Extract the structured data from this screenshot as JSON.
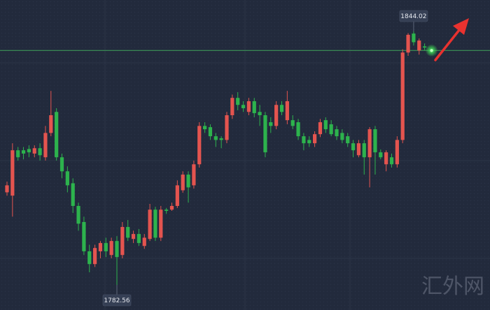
{
  "chart_data": {
    "type": "candlestick",
    "up_color": "#e4544f",
    "down_color": "#2db34d",
    "price_line_color": "#3fa35a",
    "price_line": 1839.4,
    "watermark": "汇外网",
    "annotations": [
      {
        "label": "1844.02",
        "value": 1844.02,
        "index": 74
      },
      {
        "label": "1782.56",
        "value": 1782.56,
        "index": 20
      }
    ],
    "ohlc": [
      [
        1805.0,
        1807.6,
        1804.2,
        1806.7
      ],
      [
        1804.2,
        1816.9,
        1799.1,
        1815.2
      ],
      [
        1815.2,
        1816.0,
        1812.7,
        1813.5
      ],
      [
        1815.2,
        1816.0,
        1813.0,
        1814.4
      ],
      [
        1815.5,
        1816.4,
        1813.5,
        1814.7
      ],
      [
        1814.4,
        1816.4,
        1813.5,
        1815.7
      ],
      [
        1815.7,
        1816.9,
        1812.7,
        1814.0
      ],
      [
        1813.5,
        1821.1,
        1812.7,
        1819.4
      ],
      [
        1819.4,
        1829.6,
        1818.6,
        1823.7
      ],
      [
        1824.5,
        1825.4,
        1812.7,
        1813.5
      ],
      [
        1813.5,
        1814.4,
        1808.4,
        1810.1
      ],
      [
        1810.1,
        1811.3,
        1805.0,
        1806.7
      ],
      [
        1807.2,
        1808.4,
        1800.0,
        1801.7
      ],
      [
        1801.7,
        1802.5,
        1795.7,
        1797.4
      ],
      [
        1797.8,
        1799.1,
        1789.8,
        1790.7
      ],
      [
        1790.7,
        1792.3,
        1785.6,
        1787.6
      ],
      [
        1787.6,
        1792.3,
        1786.9,
        1791.5
      ],
      [
        1790.7,
        1793.2,
        1789.0,
        1792.7
      ],
      [
        1792.7,
        1794.0,
        1789.3,
        1790.7
      ],
      [
        1789.8,
        1794.0,
        1789.0,
        1793.2
      ],
      [
        1793.2,
        1794.4,
        1782.56,
        1789.3
      ],
      [
        1789.8,
        1797.8,
        1789.0,
        1796.6
      ],
      [
        1796.6,
        1798.3,
        1793.2,
        1794.0
      ],
      [
        1793.7,
        1795.7,
        1792.7,
        1794.9
      ],
      [
        1794.9,
        1796.1,
        1792.0,
        1792.7
      ],
      [
        1792.0,
        1794.9,
        1791.3,
        1794.0
      ],
      [
        1793.7,
        1802.2,
        1793.2,
        1800.8
      ],
      [
        1800.8,
        1801.5,
        1793.2,
        1794.0
      ],
      [
        1794.0,
        1801.7,
        1793.2,
        1800.8
      ],
      [
        1800.8,
        1801.2,
        1799.8,
        1800.5
      ],
      [
        1800.8,
        1802.5,
        1800.5,
        1801.7
      ],
      [
        1801.7,
        1807.9,
        1801.2,
        1806.7
      ],
      [
        1805.5,
        1810.1,
        1804.9,
        1809.3
      ],
      [
        1809.3,
        1810.1,
        1802.5,
        1806.2
      ],
      [
        1806.7,
        1812.7,
        1805.9,
        1811.8
      ],
      [
        1811.8,
        1822.0,
        1811.0,
        1821.1
      ],
      [
        1821.1,
        1822.0,
        1819.4,
        1820.3
      ],
      [
        1820.8,
        1821.5,
        1817.7,
        1818.6
      ],
      [
        1818.6,
        1819.4,
        1816.0,
        1817.7
      ],
      [
        1818.1,
        1818.6,
        1815.7,
        1817.7
      ],
      [
        1817.7,
        1824.5,
        1816.9,
        1823.7
      ],
      [
        1823.7,
        1828.7,
        1822.8,
        1827.9
      ],
      [
        1827.9,
        1829.3,
        1824.9,
        1826.2
      ],
      [
        1826.2,
        1827.1,
        1824.5,
        1825.4
      ],
      [
        1824.5,
        1827.9,
        1823.7,
        1827.1
      ],
      [
        1827.1,
        1827.9,
        1823.2,
        1824.2
      ],
      [
        1824.5,
        1826.2,
        1821.1,
        1823.7
      ],
      [
        1823.7,
        1824.5,
        1813.5,
        1814.7
      ],
      [
        1822.0,
        1823.2,
        1819.4,
        1821.1
      ],
      [
        1821.1,
        1827.1,
        1820.3,
        1826.2
      ],
      [
        1826.2,
        1827.1,
        1823.7,
        1824.5
      ],
      [
        1822.5,
        1829.6,
        1821.5,
        1827.1
      ],
      [
        1822.5,
        1823.7,
        1820.3,
        1821.1
      ],
      [
        1822.0,
        1822.8,
        1817.7,
        1818.6
      ],
      [
        1818.6,
        1819.4,
        1815.2,
        1816.9
      ],
      [
        1817.7,
        1818.6,
        1816.0,
        1816.9
      ],
      [
        1816.9,
        1819.8,
        1816.0,
        1819.1
      ],
      [
        1819.1,
        1822.8,
        1818.4,
        1822.0
      ],
      [
        1822.5,
        1823.2,
        1819.4,
        1820.3
      ],
      [
        1821.5,
        1822.5,
        1818.6,
        1819.1
      ],
      [
        1820.3,
        1821.1,
        1817.7,
        1818.6
      ],
      [
        1819.4,
        1820.3,
        1816.9,
        1817.7
      ],
      [
        1818.6,
        1819.4,
        1816.0,
        1816.9
      ],
      [
        1816.9,
        1817.7,
        1813.5,
        1815.2
      ],
      [
        1814.0,
        1817.7,
        1813.5,
        1816.9
      ],
      [
        1816.9,
        1817.7,
        1809.3,
        1813.5
      ],
      [
        1813.5,
        1820.8,
        1806.2,
        1820.3
      ],
      [
        1820.3,
        1821.1,
        1809.3,
        1814.7
      ],
      [
        1814.7,
        1815.4,
        1813.0,
        1813.5
      ],
      [
        1811.8,
        1815.2,
        1810.1,
        1814.7
      ],
      [
        1813.5,
        1814.4,
        1811.0,
        1811.8
      ],
      [
        1811.8,
        1818.6,
        1811.0,
        1817.7
      ],
      [
        1817.7,
        1839.7,
        1816.9,
        1838.9
      ],
      [
        1838.9,
        1843.6,
        1838.1,
        1843.2
      ],
      [
        1843.5,
        1844.02,
        1840.6,
        1841.4
      ],
      [
        1839.4,
        1842.3,
        1838.4,
        1841.8
      ],
      [
        1840.4,
        1841.1,
        1839.4,
        1840.1
      ]
    ]
  }
}
